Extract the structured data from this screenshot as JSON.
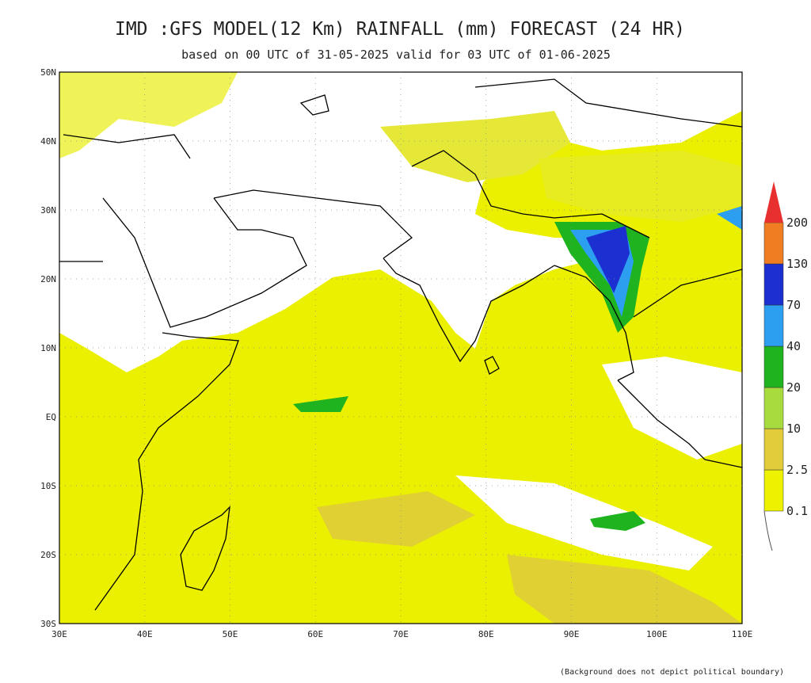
{
  "header": {
    "title": "IMD :GFS MODEL(12 Km) RAINFALL (mm) FORECAST (24 HR)",
    "subtitle": "based on 00 UTC of 31-05-2025 valid for 03 UTC of 01-06-2025"
  },
  "map": {
    "lat_labels": [
      "50N",
      "40N",
      "30N",
      "20N",
      "10N",
      "EQ",
      "10S",
      "20S",
      "30S"
    ],
    "lon_labels": [
      "30E",
      "40E",
      "50E",
      "60E",
      "70E",
      "80E",
      "90E",
      "100E",
      "110E"
    ]
  },
  "legend": {
    "levels": [
      {
        "label": "0.1",
        "color": "#eef200"
      },
      {
        "label": "2.5",
        "color": "#e2cc3a"
      },
      {
        "label": "10",
        "color": "#a6dc3e"
      },
      {
        "label": "20",
        "color": "#1fb31f"
      },
      {
        "label": "40",
        "color": "#2c9ff0"
      },
      {
        "label": "70",
        "color": "#1c2fd0"
      },
      {
        "label": "130",
        "color": "#f07d22"
      },
      {
        "label": "200",
        "color": "#e83030"
      }
    ]
  },
  "footnote": "(Background does not depict political boundary)"
}
